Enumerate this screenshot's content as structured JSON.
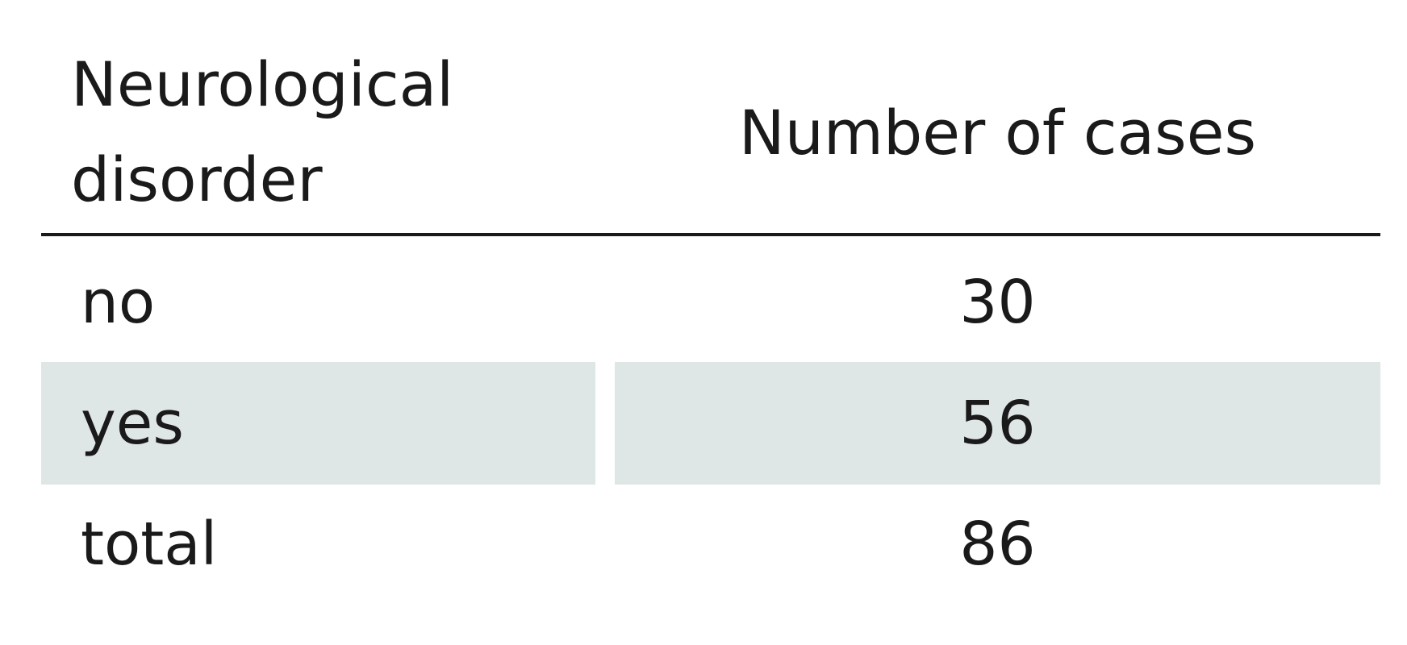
{
  "table": {
    "header": [
      "Neurological disorder",
      "Number of cases"
    ],
    "rows": [
      [
        "no",
        30
      ],
      [
        "yes",
        56
      ],
      [
        "total",
        86
      ]
    ]
  }
}
